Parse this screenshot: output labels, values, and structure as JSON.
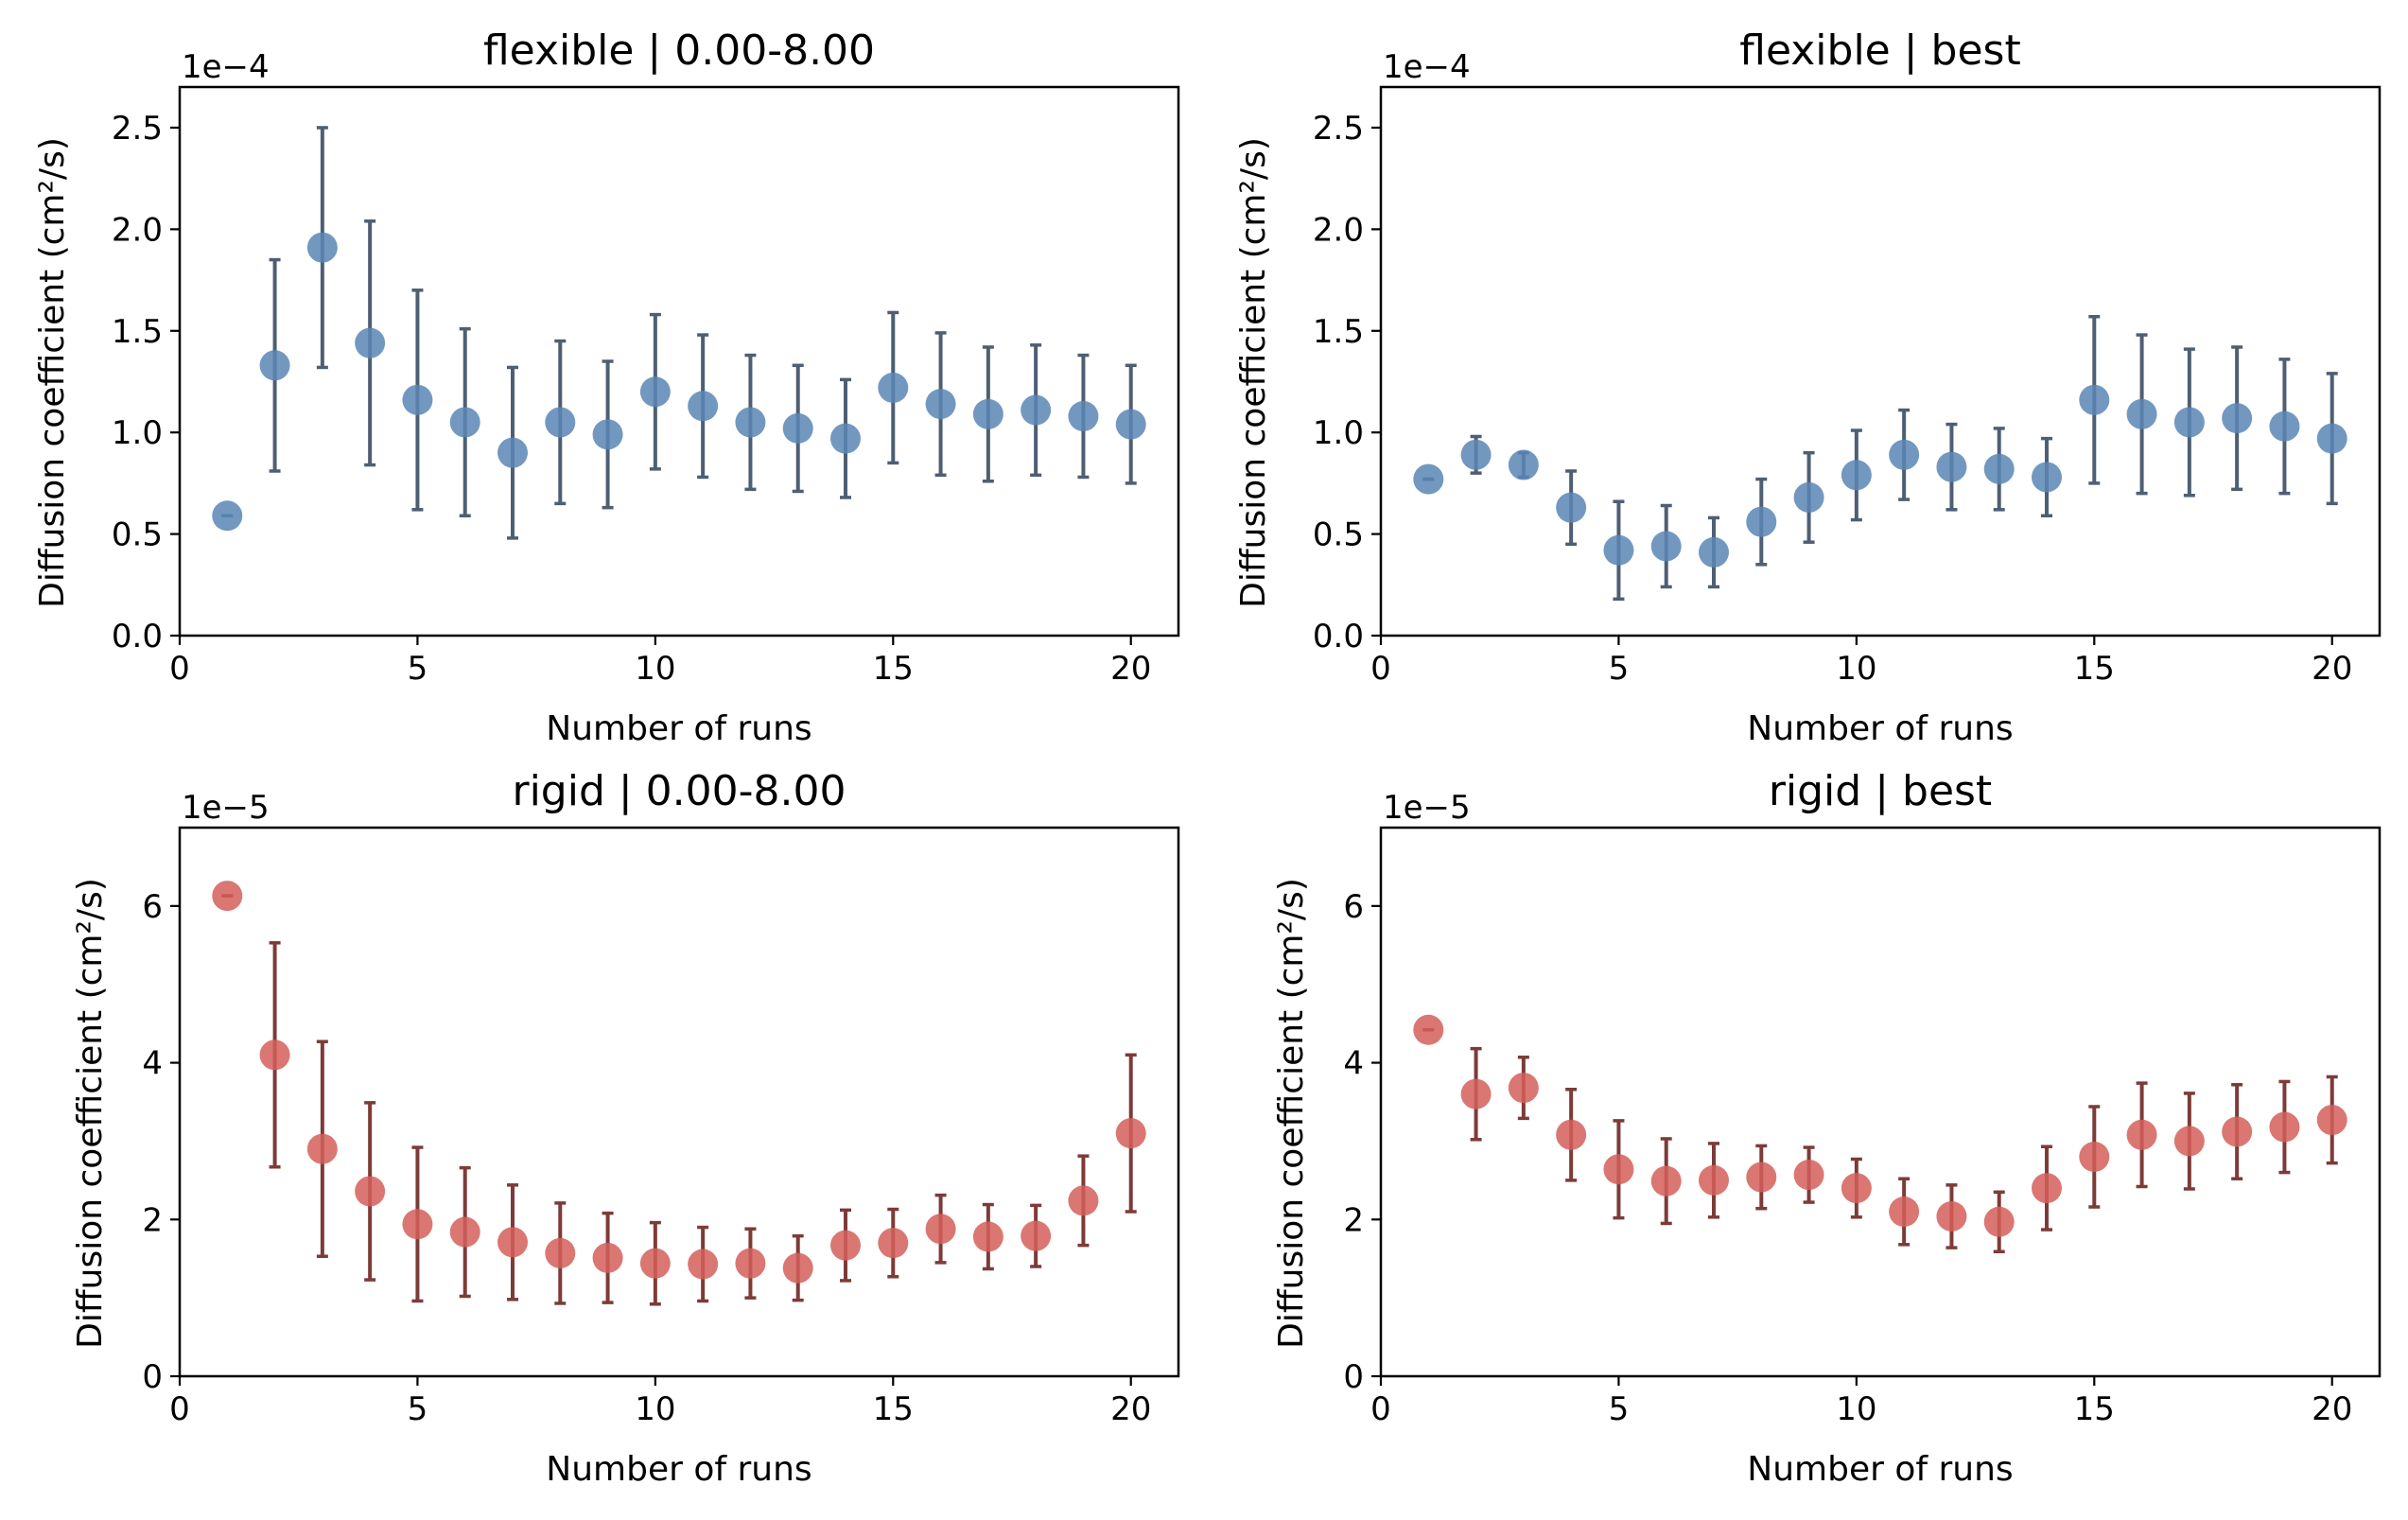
{
  "chart_data": [
    {
      "type": "scatter",
      "title": "flexible | 0.00-8.00",
      "xlabel": "Number of runs",
      "ylabel": "Diffusion coefficient (cm²/s)",
      "y_exponent_label": "1e−4",
      "xlim": [
        0,
        21
      ],
      "ylim": [
        0,
        2.7
      ],
      "xticks": [
        "0",
        "5",
        "10",
        "15",
        "20"
      ],
      "yticks": [
        "0.0",
        "0.5",
        "1.0",
        "1.5",
        "2.0",
        "2.5"
      ],
      "marker_color": "#5b86b5",
      "errorbar_color": "#4e5f73",
      "grid": false,
      "x": [
        1,
        2,
        3,
        4,
        5,
        6,
        7,
        8,
        9,
        10,
        11,
        12,
        13,
        14,
        15,
        16,
        17,
        18,
        19,
        20
      ],
      "y": [
        0.59,
        1.33,
        1.91,
        1.44,
        1.16,
        1.05,
        0.9,
        1.05,
        0.99,
        1.2,
        1.13,
        1.05,
        1.02,
        0.97,
        1.22,
        1.14,
        1.09,
        1.11,
        1.08,
        1.04
      ],
      "yerr": [
        0.0,
        0.52,
        0.59,
        0.6,
        0.54,
        0.46,
        0.42,
        0.4,
        0.36,
        0.38,
        0.35,
        0.33,
        0.31,
        0.29,
        0.37,
        0.35,
        0.33,
        0.32,
        0.3,
        0.29
      ]
    },
    {
      "type": "scatter",
      "title": "flexible | best",
      "xlabel": "Number of runs",
      "ylabel": "Diffusion coefficient (cm²/s)",
      "y_exponent_label": "1e−4",
      "xlim": [
        0,
        21
      ],
      "ylim": [
        0,
        2.7
      ],
      "xticks": [
        "0",
        "5",
        "10",
        "15",
        "20"
      ],
      "yticks": [
        "0.0",
        "0.5",
        "1.0",
        "1.5",
        "2.0",
        "2.5"
      ],
      "marker_color": "#5b86b5",
      "errorbar_color": "#4e5f73",
      "grid": false,
      "x": [
        1,
        2,
        3,
        4,
        5,
        6,
        7,
        8,
        9,
        10,
        11,
        12,
        13,
        14,
        15,
        16,
        17,
        18,
        19,
        20
      ],
      "y": [
        0.77,
        0.89,
        0.84,
        0.63,
        0.42,
        0.44,
        0.41,
        0.56,
        0.68,
        0.79,
        0.89,
        0.83,
        0.82,
        0.78,
        1.16,
        1.09,
        1.05,
        1.07,
        1.03,
        0.97
      ],
      "yerr": [
        0.0,
        0.09,
        0.06,
        0.18,
        0.24,
        0.2,
        0.17,
        0.21,
        0.22,
        0.22,
        0.22,
        0.21,
        0.2,
        0.19,
        0.41,
        0.39,
        0.36,
        0.35,
        0.33,
        0.32
      ]
    },
    {
      "type": "scatter",
      "title": "rigid | 0.00-8.00",
      "xlabel": "Number of runs",
      "ylabel": "Diffusion coefficient (cm²/s)",
      "y_exponent_label": "1e−5",
      "xlim": [
        0,
        21
      ],
      "ylim": [
        0,
        7
      ],
      "xticks": [
        "0",
        "5",
        "10",
        "15",
        "20"
      ],
      "yticks": [
        "0",
        "2",
        "4",
        "6"
      ],
      "marker_color": "#d45f5a",
      "errorbar_color": "#7d3b38",
      "grid": false,
      "x": [
        1,
        2,
        3,
        4,
        5,
        6,
        7,
        8,
        9,
        10,
        11,
        12,
        13,
        14,
        15,
        16,
        17,
        18,
        19,
        20
      ],
      "y": [
        6.13,
        4.1,
        2.9,
        2.36,
        1.94,
        1.84,
        1.71,
        1.57,
        1.51,
        1.44,
        1.43,
        1.44,
        1.38,
        1.67,
        1.7,
        1.88,
        1.78,
        1.79,
        2.24,
        3.1
      ],
      "yerr": [
        0.0,
        1.43,
        1.37,
        1.13,
        0.98,
        0.82,
        0.73,
        0.64,
        0.57,
        0.52,
        0.47,
        0.44,
        0.41,
        0.45,
        0.43,
        0.43,
        0.41,
        0.39,
        0.57,
        1.0
      ]
    },
    {
      "type": "scatter",
      "title": "rigid | best",
      "xlabel": "Number of runs",
      "ylabel": "Diffusion coefficient (cm²/s)",
      "y_exponent_label": "1e−5",
      "xlim": [
        0,
        21
      ],
      "ylim": [
        0,
        7
      ],
      "xticks": [
        "0",
        "5",
        "10",
        "15",
        "20"
      ],
      "yticks": [
        "0",
        "2",
        "4",
        "6"
      ],
      "marker_color": "#d45f5a",
      "errorbar_color": "#7d3b38",
      "grid": false,
      "x": [
        1,
        2,
        3,
        4,
        5,
        6,
        7,
        8,
        9,
        10,
        11,
        12,
        13,
        14,
        15,
        16,
        17,
        18,
        19,
        20
      ],
      "y": [
        4.42,
        3.6,
        3.68,
        3.08,
        2.64,
        2.49,
        2.5,
        2.54,
        2.57,
        2.4,
        2.1,
        2.04,
        1.97,
        2.4,
        2.8,
        3.08,
        3.0,
        3.12,
        3.18,
        3.27
      ],
      "yerr": [
        0.0,
        0.58,
        0.39,
        0.58,
        0.62,
        0.54,
        0.47,
        0.4,
        0.35,
        0.37,
        0.42,
        0.4,
        0.38,
        0.53,
        0.64,
        0.66,
        0.61,
        0.6,
        0.58,
        0.55
      ]
    }
  ]
}
